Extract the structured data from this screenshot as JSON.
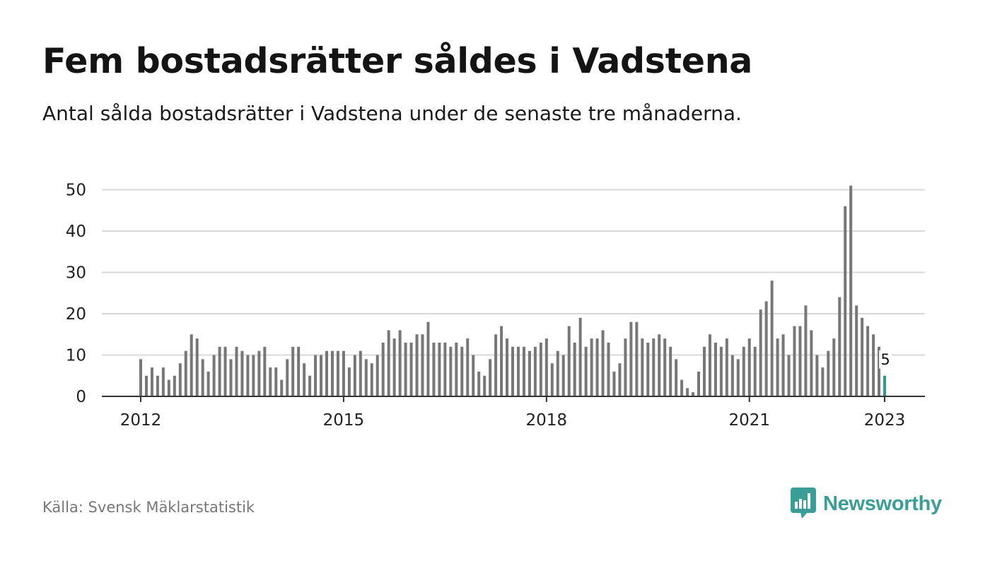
{
  "title": "Fem bostadsrätter såldes i Vadstena",
  "subtitle": "Antal sålda bostadsrätter i Vadstena under de senaste tre månaderna.",
  "source": "Källa: Svensk Mäklarstatistik",
  "brand": {
    "name": "Newsworthy",
    "color": "#3a9e98",
    "icon": "bar-chart-speech-bubble-icon"
  },
  "colors": {
    "bar": "#777777",
    "highlight": "#2a9d94",
    "grid": "#d9d9d9",
    "axis": "#333333"
  },
  "chart_data": {
    "type": "bar",
    "x_start": "2012-01",
    "x_end": "2023-01",
    "interval": "month",
    "xticks": [
      "2012",
      "2015",
      "2018",
      "2021",
      "2023"
    ],
    "yticks": [
      0,
      10,
      20,
      30,
      40,
      50
    ],
    "ylim": [
      0,
      52
    ],
    "grid": true,
    "values": [
      9,
      5,
      7,
      5,
      7,
      4,
      5,
      8,
      11,
      15,
      14,
      9,
      6,
      10,
      12,
      12,
      9,
      12,
      11,
      10,
      10,
      11,
      12,
      7,
      7,
      4,
      9,
      12,
      12,
      8,
      5,
      10,
      10,
      11,
      11,
      11,
      11,
      7,
      10,
      11,
      9,
      8,
      10,
      13,
      16,
      14,
      16,
      13,
      13,
      15,
      15,
      18,
      13,
      13,
      13,
      12,
      13,
      12,
      14,
      10,
      6,
      5,
      9,
      15,
      17,
      14,
      12,
      12,
      12,
      11,
      12,
      13,
      14,
      8,
      11,
      10,
      17,
      13,
      19,
      12,
      14,
      14,
      16,
      13,
      6,
      8,
      14,
      18,
      18,
      14,
      13,
      14,
      15,
      14,
      12,
      9,
      4,
      2,
      1,
      6,
      12,
      15,
      13,
      12,
      14,
      10,
      9,
      12,
      14,
      12,
      21,
      23,
      28,
      14,
      15,
      10,
      17,
      17,
      22,
      16,
      10,
      7,
      11,
      14,
      24,
      46,
      51,
      22,
      19,
      17,
      15,
      12,
      5
    ],
    "highlight_last": true,
    "last_value_label": "5"
  }
}
